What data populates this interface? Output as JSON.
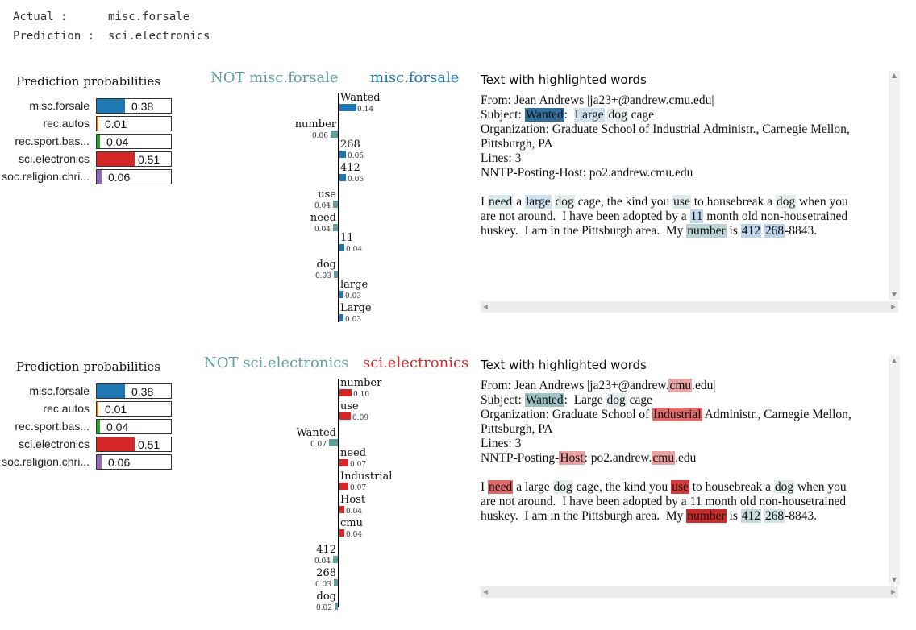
{
  "header": {
    "actual_key": "Actual :",
    "actual_value": "misc.forsale",
    "prediction_key": "Prediction :",
    "prediction_value": "sci.electronics"
  },
  "panels": [
    {
      "prob_title": "Prediction probabilities",
      "probs": [
        {
          "label": "misc.forsale",
          "value": "0.38",
          "fraction": 0.38,
          "color": "#1f77b4"
        },
        {
          "label": "rec.autos",
          "value": "0.01",
          "fraction": 0.01,
          "color": "#ff7f0e"
        },
        {
          "label": "rec.sport.bas...",
          "value": "0.04",
          "fraction": 0.04,
          "color": "#2ca02c"
        },
        {
          "label": "sci.electronics",
          "value": "0.51",
          "fraction": 0.51,
          "color": "#d62728"
        },
        {
          "label": "soc.religion.chri...",
          "value": "0.06",
          "fraction": 0.06,
          "color": "#9467bd"
        }
      ],
      "neg_title": "NOT misc.forsale",
      "pos_title": "misc.forsale",
      "pos_color": "#1f77b4",
      "neg_color": "#5f9ea0",
      "features": [
        {
          "name": "Wanted",
          "value": "0.14",
          "weight": 0.14,
          "side": "pos"
        },
        {
          "name": "number",
          "value": "0.06",
          "weight": 0.06,
          "side": "neg"
        },
        {
          "name": "268",
          "value": "0.05",
          "weight": 0.05,
          "side": "pos"
        },
        {
          "name": "412",
          "value": "0.05",
          "weight": 0.05,
          "side": "pos"
        },
        {
          "name": "use",
          "value": "0.04",
          "weight": 0.04,
          "side": "neg"
        },
        {
          "name": "need",
          "value": "0.04",
          "weight": 0.04,
          "side": "neg"
        },
        {
          "name": "11",
          "value": "0.04",
          "weight": 0.04,
          "side": "pos"
        },
        {
          "name": "dog",
          "value": "0.03",
          "weight": 0.03,
          "side": "neg"
        },
        {
          "name": "large",
          "value": "0.03",
          "weight": 0.03,
          "side": "pos"
        },
        {
          "name": "Large",
          "value": "0.03",
          "weight": 0.03,
          "side": "pos"
        }
      ],
      "text_title": "Text with highlighted words",
      "text_lines": [
        [
          {
            "t": "From: Jean Andrews |ja23+@andrew.cmu.edu|"
          }
        ],
        [
          {
            "t": "Subject: "
          },
          {
            "t": "Wanted",
            "bg": "#2f6fa0",
            "fg": "#111"
          },
          {
            "t": ":  "
          },
          {
            "t": "Large",
            "bg": "#cfe0ef"
          },
          {
            "t": " "
          },
          {
            "t": "dog",
            "bg": "#e4eded"
          },
          {
            "t": " cage"
          }
        ],
        [
          {
            "t": "Organization: Graduate School of Industrial Administr., Carnegie Mellon,"
          }
        ],
        [
          {
            "t": "Pittsburgh, PA"
          }
        ],
        [
          {
            "t": "Lines: 3"
          }
        ],
        [
          {
            "t": "NNTP-Posting-Host: po2.andrew.cmu.edu"
          }
        ],
        [],
        [
          {
            "t": "I "
          },
          {
            "t": "need",
            "bg": "#dbe9ea"
          },
          {
            "t": " a "
          },
          {
            "t": "large",
            "bg": "#cfe0ef"
          },
          {
            "t": " "
          },
          {
            "t": "dog",
            "bg": "#e4eded"
          },
          {
            "t": " cage, the kind you "
          },
          {
            "t": "use",
            "bg": "#dbe9ea"
          },
          {
            "t": " to housebreak a "
          },
          {
            "t": "dog",
            "bg": "#e4eded"
          },
          {
            "t": " when you"
          }
        ],
        [
          {
            "t": "are not around.  I have been adopted by a "
          },
          {
            "t": "11",
            "bg": "#c4d9ec"
          },
          {
            "t": " month old non-housetrained"
          }
        ],
        [
          {
            "t": "huskey.  I am in the Pittsburgh area.  My "
          },
          {
            "t": "number",
            "bg": "#b9d3d4"
          },
          {
            "t": " is "
          },
          {
            "t": "412",
            "bg": "#bcd4ea"
          },
          {
            "t": " "
          },
          {
            "t": "268",
            "bg": "#bcd4ea"
          },
          {
            "t": "-8843."
          }
        ]
      ]
    },
    {
      "prob_title": "Prediction probabilities",
      "probs": [
        {
          "label": "misc.forsale",
          "value": "0.38",
          "fraction": 0.38,
          "color": "#1f77b4"
        },
        {
          "label": "rec.autos",
          "value": "0.01",
          "fraction": 0.01,
          "color": "#ff7f0e"
        },
        {
          "label": "rec.sport.bas...",
          "value": "0.04",
          "fraction": 0.04,
          "color": "#2ca02c"
        },
        {
          "label": "sci.electronics",
          "value": "0.51",
          "fraction": 0.51,
          "color": "#d62728"
        },
        {
          "label": "soc.religion.chri...",
          "value": "0.06",
          "fraction": 0.06,
          "color": "#9467bd"
        }
      ],
      "neg_title": "NOT sci.electronics",
      "pos_title": "sci.electronics",
      "pos_color": "#d62728",
      "neg_color": "#5f9ea0",
      "features": [
        {
          "name": "number",
          "value": "0.10",
          "weight": 0.1,
          "side": "pos"
        },
        {
          "name": "use",
          "value": "0.09",
          "weight": 0.09,
          "side": "pos"
        },
        {
          "name": "Wanted",
          "value": "0.07",
          "weight": 0.07,
          "side": "neg"
        },
        {
          "name": "need",
          "value": "0.07",
          "weight": 0.07,
          "side": "pos"
        },
        {
          "name": "Industrial",
          "value": "0.07",
          "weight": 0.07,
          "side": "pos"
        },
        {
          "name": "Host",
          "value": "0.04",
          "weight": 0.04,
          "side": "pos"
        },
        {
          "name": "cmu",
          "value": "0.04",
          "weight": 0.04,
          "side": "pos"
        },
        {
          "name": "412",
          "value": "0.04",
          "weight": 0.04,
          "side": "neg"
        },
        {
          "name": "268",
          "value": "0.03",
          "weight": 0.03,
          "side": "neg"
        },
        {
          "name": "dog",
          "value": "0.02",
          "weight": 0.02,
          "side": "neg"
        }
      ],
      "text_title": "Text with highlighted words",
      "text_lines": [
        [
          {
            "t": "From: Jean Andrews |ja23+@andrew."
          },
          {
            "t": "cmu",
            "bg": "#e9a3a3"
          },
          {
            "t": ".edu|"
          }
        ],
        [
          {
            "t": "Subject: "
          },
          {
            "t": "Wanted",
            "bg": "#9fc3c4"
          },
          {
            "t": ":  Large "
          },
          {
            "t": "dog",
            "bg": "#e4eded"
          },
          {
            "t": " cage"
          }
        ],
        [
          {
            "t": "Organization: Graduate School of "
          },
          {
            "t": "Industrial",
            "bg": "#de6a6a"
          },
          {
            "t": " Administr., Carnegie Mellon,"
          }
        ],
        [
          {
            "t": "Pittsburgh, PA"
          }
        ],
        [
          {
            "t": "Lines: 3"
          }
        ],
        [
          {
            "t": "NNTP-Posting-"
          },
          {
            "t": "Host",
            "bg": "#e9a3a3"
          },
          {
            "t": ": po2.andrew."
          },
          {
            "t": "cmu",
            "bg": "#e9a3a3"
          },
          {
            "t": ".edu"
          }
        ],
        [],
        [
          {
            "t": "I "
          },
          {
            "t": "need",
            "bg": "#de6a6a"
          },
          {
            "t": " a large "
          },
          {
            "t": "dog",
            "bg": "#e4eded"
          },
          {
            "t": " cage, the kind you "
          },
          {
            "t": "use",
            "bg": "#d63a3a"
          },
          {
            "t": " to housebreak a "
          },
          {
            "t": "dog",
            "bg": "#e4eded"
          },
          {
            "t": " when you"
          }
        ],
        [
          {
            "t": "are not around.  I have been adopted by a 11 month old non-housetrained"
          }
        ],
        [
          {
            "t": "huskey.  I am in the Pittsburgh area.  My "
          },
          {
            "t": "number",
            "bg": "#c92a2a"
          },
          {
            "t": " is "
          },
          {
            "t": "412",
            "bg": "#c8dcdc"
          },
          {
            "t": " "
          },
          {
            "t": "268",
            "bg": "#d2e3e3"
          },
          {
            "t": "-8843."
          }
        ]
      ]
    }
  ]
}
